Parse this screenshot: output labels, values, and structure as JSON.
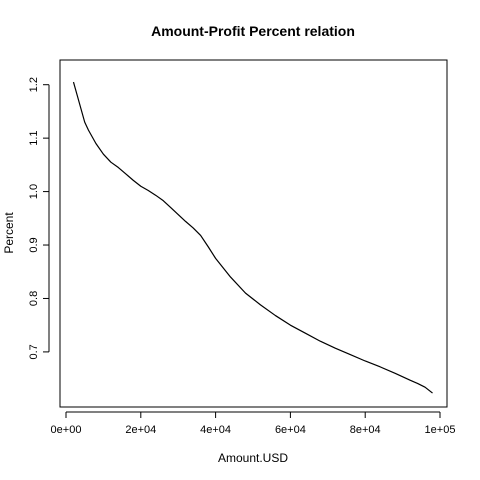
{
  "chart_data": {
    "type": "line",
    "title": "Amount-Profit Percent relation",
    "xlabel": "Amount.USD",
    "ylabel": "Percent",
    "xlim": [
      0,
      100000
    ],
    "ylim": [
      0.61,
      1.235
    ],
    "grid": false,
    "x_ticks": [
      {
        "value": 0,
        "label": "0e+00"
      },
      {
        "value": 20000,
        "label": "2e+04"
      },
      {
        "value": 40000,
        "label": "4e+04"
      },
      {
        "value": 60000,
        "label": "6e+04"
      },
      {
        "value": 80000,
        "label": "8e+04"
      },
      {
        "value": 100000,
        "label": "1e+05"
      }
    ],
    "y_ticks": [
      {
        "value": 0.7,
        "label": "0.7"
      },
      {
        "value": 0.8,
        "label": "0.8"
      },
      {
        "value": 0.9,
        "label": "0.9"
      },
      {
        "value": 1.0,
        "label": "1.0"
      },
      {
        "value": 1.1,
        "label": "1.1"
      },
      {
        "value": 1.2,
        "label": "1.2"
      }
    ],
    "series": [
      {
        "color": "#000000",
        "x": [
          2000,
          3000,
          4000,
          5000,
          6000,
          8000,
          10000,
          12000,
          14000,
          16000,
          18000,
          20000,
          22000,
          24000,
          26000,
          28000,
          30000,
          32000,
          34000,
          36000,
          38000,
          40000,
          44000,
          48000,
          52000,
          56000,
          60000,
          64000,
          68000,
          72000,
          76000,
          80000,
          84000,
          88000,
          92000,
          94000,
          96000,
          98000
        ],
        "y": [
          1.205,
          1.18,
          1.155,
          1.13,
          1.115,
          1.09,
          1.07,
          1.055,
          1.045,
          1.033,
          1.021,
          1.01,
          1.002,
          0.993,
          0.983,
          0.97,
          0.957,
          0.944,
          0.932,
          0.918,
          0.897,
          0.875,
          0.84,
          0.81,
          0.788,
          0.768,
          0.75,
          0.735,
          0.72,
          0.707,
          0.695,
          0.683,
          0.672,
          0.66,
          0.647,
          0.641,
          0.634,
          0.623
        ]
      }
    ]
  }
}
